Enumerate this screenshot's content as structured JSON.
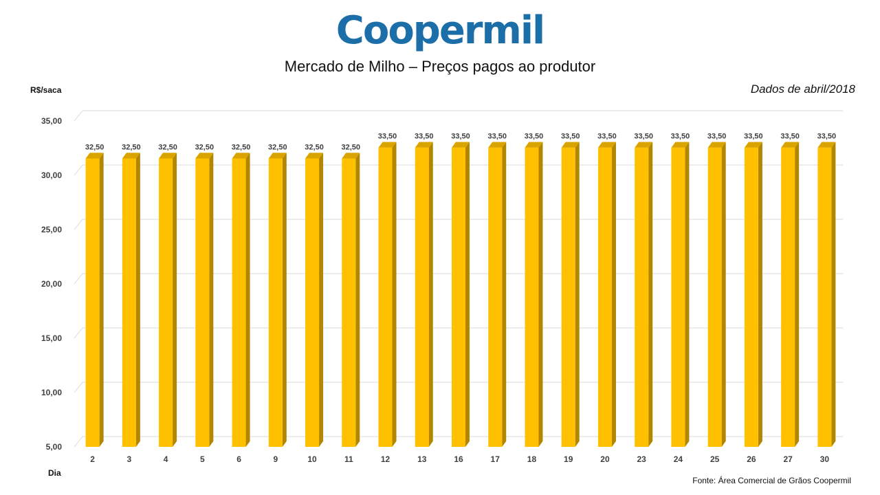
{
  "logo": {
    "text": "Coopermil"
  },
  "chart_data": {
    "type": "bar",
    "title": "Mercado de Milho – Preços pagos ao produtor",
    "subtitle": "Dados de abril/2018",
    "ylabel": "R$/saca",
    "xlabel": "Dia",
    "ylim": [
      5,
      35
    ],
    "ytick_values": [
      5,
      10,
      15,
      20,
      25,
      30,
      35
    ],
    "yticks": [
      "5,00",
      "10,00",
      "15,00",
      "20,00",
      "25,00",
      "30,00",
      "35,00"
    ],
    "grid": true,
    "categories": [
      "2",
      "3",
      "4",
      "5",
      "6",
      "9",
      "10",
      "11",
      "12",
      "13",
      "16",
      "17",
      "18",
      "19",
      "20",
      "23",
      "24",
      "25",
      "26",
      "27",
      "30"
    ],
    "values": [
      32.5,
      32.5,
      32.5,
      32.5,
      32.5,
      32.5,
      32.5,
      32.5,
      33.5,
      33.5,
      33.5,
      33.5,
      33.5,
      33.5,
      33.5,
      33.5,
      33.5,
      33.5,
      33.5,
      33.5,
      33.5
    ],
    "data_labels": [
      "32,50",
      "32,50",
      "32,50",
      "32,50",
      "32,50",
      "32,50",
      "32,50",
      "32,50",
      "33,50",
      "33,50",
      "33,50",
      "33,50",
      "33,50",
      "33,50",
      "33,50",
      "33,50",
      "33,50",
      "33,50",
      "33,50",
      "33,50",
      "33,50"
    ],
    "colors": {
      "bar_front": "#FFC000",
      "bar_side": "#B38600",
      "bar_top": "#D9A300",
      "grid": "#D9D9D9"
    }
  },
  "source": "Fonte: Área Comercial de Grãos Coopermil"
}
